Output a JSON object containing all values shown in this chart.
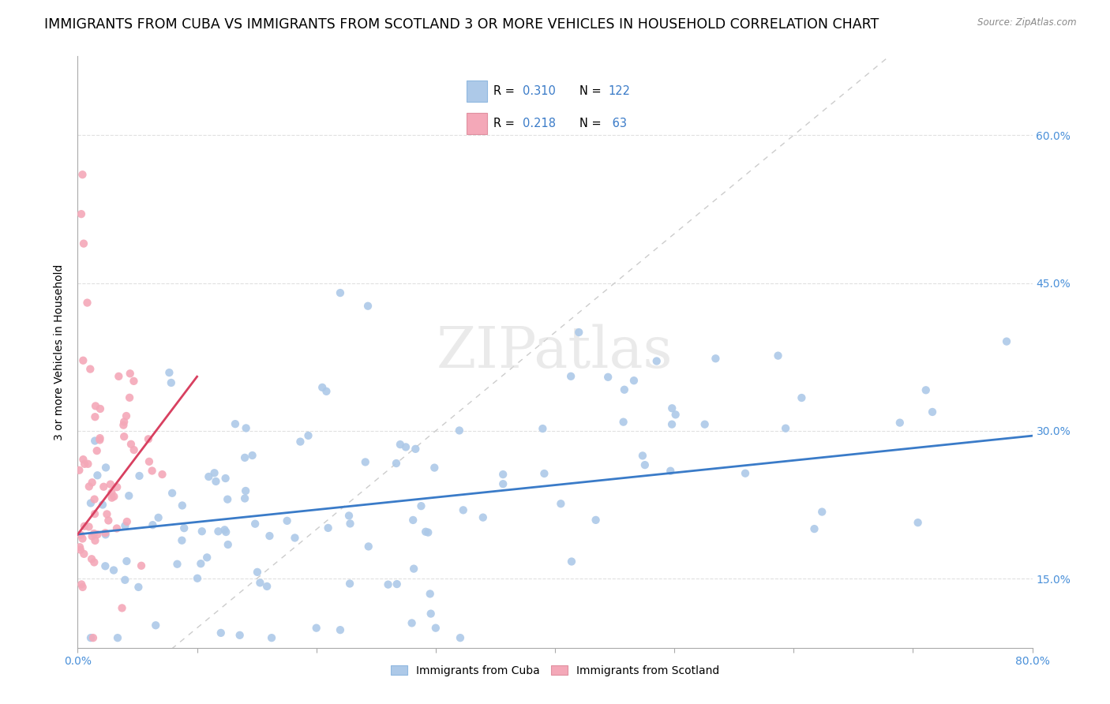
{
  "title": "IMMIGRANTS FROM CUBA VS IMMIGRANTS FROM SCOTLAND 3 OR MORE VEHICLES IN HOUSEHOLD CORRELATION CHART",
  "source": "Source: ZipAtlas.com",
  "ylabel": "3 or more Vehicles in Household",
  "right_yticks": [
    "15.0%",
    "30.0%",
    "45.0%",
    "60.0%"
  ],
  "right_ytick_vals": [
    0.15,
    0.3,
    0.45,
    0.6
  ],
  "xlim": [
    0.0,
    0.8
  ],
  "ylim": [
    0.08,
    0.68
  ],
  "cuba_R": 0.31,
  "cuba_N": 122,
  "scotland_R": 0.218,
  "scotland_N": 63,
  "cuba_color": "#adc9e8",
  "scotland_color": "#f4a8b8",
  "cuba_line_color": "#3a7bc8",
  "scotland_line_color": "#d84060",
  "legend_label_cuba": "Immigrants from Cuba",
  "legend_label_scotland": "Immigrants from Scotland",
  "watermark": "ZIPatlas",
  "title_fontsize": 12.5,
  "axis_label_fontsize": 10,
  "tick_fontsize": 10,
  "cuba_trend_start_y": 0.195,
  "cuba_trend_end_y": 0.295,
  "scotland_trend_start_y": 0.195,
  "scotland_trend_end_y": 0.355,
  "diag_color": "#cccccc",
  "grid_color": "#e0e0e0"
}
